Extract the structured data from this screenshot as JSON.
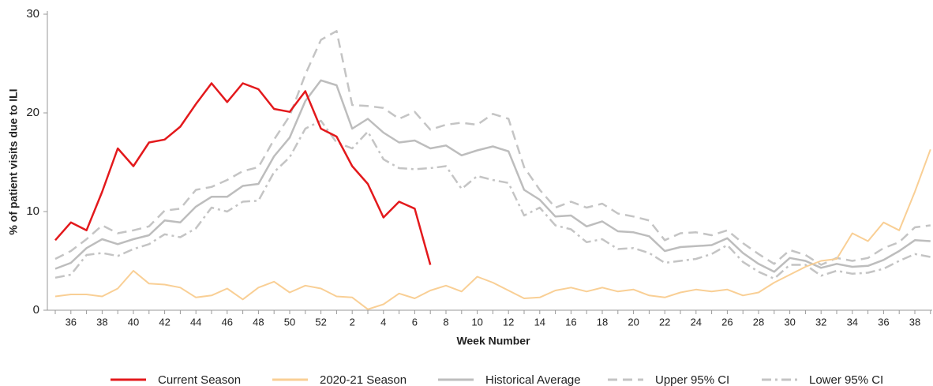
{
  "chart_data": {
    "type": "line",
    "x_label": "Week Number",
    "y_label": "% of patient visits due to ILI",
    "categories": [
      null,
      "36",
      null,
      "38",
      null,
      "40",
      null,
      "42",
      null,
      "44",
      null,
      "46",
      null,
      "48",
      null,
      "50",
      null,
      "52",
      null,
      "2",
      null,
      "4",
      null,
      "6",
      null,
      "8",
      null,
      "10",
      null,
      "12",
      null,
      "14",
      null,
      "16",
      null,
      "18",
      null,
      "20",
      null,
      "22",
      null,
      "24",
      null,
      "26",
      null,
      "28",
      null,
      "30",
      null,
      "32",
      null,
      "34",
      null,
      "36",
      null,
      "38",
      null
    ],
    "ylim": [
      0,
      30
    ],
    "yticks": [
      0,
      10,
      20,
      30
    ],
    "series": [
      {
        "name": "Current Season",
        "color": "#e3191c",
        "style": "solid",
        "width": 2.5,
        "values": [
          7.1,
          8.9,
          8.1,
          12,
          16.4,
          14.6,
          17,
          17.3,
          18.6,
          20.9,
          23,
          21.1,
          23,
          22.4,
          20.4,
          20.1,
          22.2,
          18.4,
          17.6,
          14.6,
          12.8,
          9.4,
          11,
          10.3,
          4.6,
          null,
          null,
          null,
          null,
          null,
          null,
          null,
          null,
          null,
          null,
          null,
          null,
          null,
          null,
          null,
          null,
          null,
          null,
          null,
          null,
          null,
          null,
          null,
          null,
          null,
          null,
          null,
          null,
          null,
          null,
          null,
          null
        ]
      },
      {
        "name": "2020-21 Season",
        "color": "#f9cf95",
        "style": "solid",
        "width": 2,
        "values": [
          1.4,
          1.6,
          1.6,
          1.4,
          2.2,
          4,
          2.7,
          2.6,
          2.3,
          1.3,
          1.5,
          2.2,
          1.1,
          2.3,
          2.9,
          1.8,
          2.5,
          2.2,
          1.4,
          1.3,
          0.1,
          0.6,
          1.7,
          1.2,
          2,
          2.5,
          1.9,
          3.4,
          2.8,
          2,
          1.2,
          1.3,
          2,
          2.3,
          1.9,
          2.3,
          1.9,
          2.1,
          1.5,
          1.3,
          1.8,
          2.1,
          1.9,
          2.1,
          1.5,
          1.8,
          2.8,
          3.6,
          4.4,
          5,
          5.2,
          7.8,
          7,
          8.9,
          8.1,
          12,
          16.3
        ]
      },
      {
        "name": "Historical Average",
        "color": "#bdbdbd",
        "style": "solid",
        "width": 2.5,
        "values": [
          4.2,
          4.8,
          6.3,
          7.2,
          6.7,
          7.2,
          7.6,
          9.1,
          8.9,
          10.5,
          11.5,
          11.5,
          12.6,
          12.8,
          15.6,
          17.5,
          21.2,
          23.3,
          22.8,
          18.4,
          19.4,
          18,
          17,
          17.2,
          16.4,
          16.7,
          15.7,
          16.2,
          16.6,
          16.1,
          12.2,
          11.2,
          9.5,
          9.6,
          8.5,
          9,
          8,
          7.9,
          7.5,
          6,
          6.4,
          6.5,
          6.6,
          7.3,
          5.8,
          4.7,
          3.9,
          5.3,
          5,
          4.3,
          4.7,
          4.4,
          4.5,
          5.1,
          6,
          7.1,
          7
        ]
      },
      {
        "name": "Upper 95% CI",
        "color": "#c4c4c4",
        "style": "dashed",
        "width": 2.5,
        "values": [
          5.2,
          6,
          7.2,
          8.6,
          7.8,
          8.1,
          8.5,
          10.1,
          10.3,
          12.2,
          12.5,
          13.2,
          14.1,
          14.5,
          17.3,
          19.7,
          23.9,
          27.4,
          28.3,
          20.8,
          20.7,
          20.5,
          19.4,
          20.1,
          18.3,
          18.8,
          19,
          18.8,
          19.9,
          19.4,
          14.5,
          12.2,
          10.4,
          11,
          10.4,
          10.8,
          9.8,
          9.5,
          9.1,
          7.1,
          7.8,
          7.9,
          7.6,
          8.1,
          6.8,
          5.7,
          4.7,
          6.1,
          5.6,
          4.6,
          5.3,
          5,
          5.3,
          6.3,
          6.9,
          8.4,
          8.6
        ]
      },
      {
        "name": "Lower 95% CI",
        "color": "#c4c4c4",
        "style": "dash-dot",
        "width": 2.5,
        "values": [
          3.3,
          3.6,
          5.6,
          5.8,
          5.5,
          6.2,
          6.7,
          7.7,
          7.4,
          8.3,
          10.4,
          10,
          11,
          11.1,
          14,
          15.5,
          18.4,
          19.2,
          17,
          16.4,
          18.1,
          15.3,
          14.4,
          14.3,
          14.4,
          14.6,
          12.3,
          13.6,
          13.2,
          12.9,
          9.6,
          10.4,
          8.6,
          8.2,
          6.9,
          7.2,
          6.2,
          6.3,
          5.8,
          4.8,
          5,
          5.2,
          5.7,
          6.6,
          4.9,
          3.9,
          3.2,
          4.6,
          4.6,
          3.5,
          4,
          3.7,
          3.8,
          4.2,
          5,
          5.7,
          5.4
        ]
      }
    ],
    "legend": "bottom",
    "grid": false
  }
}
